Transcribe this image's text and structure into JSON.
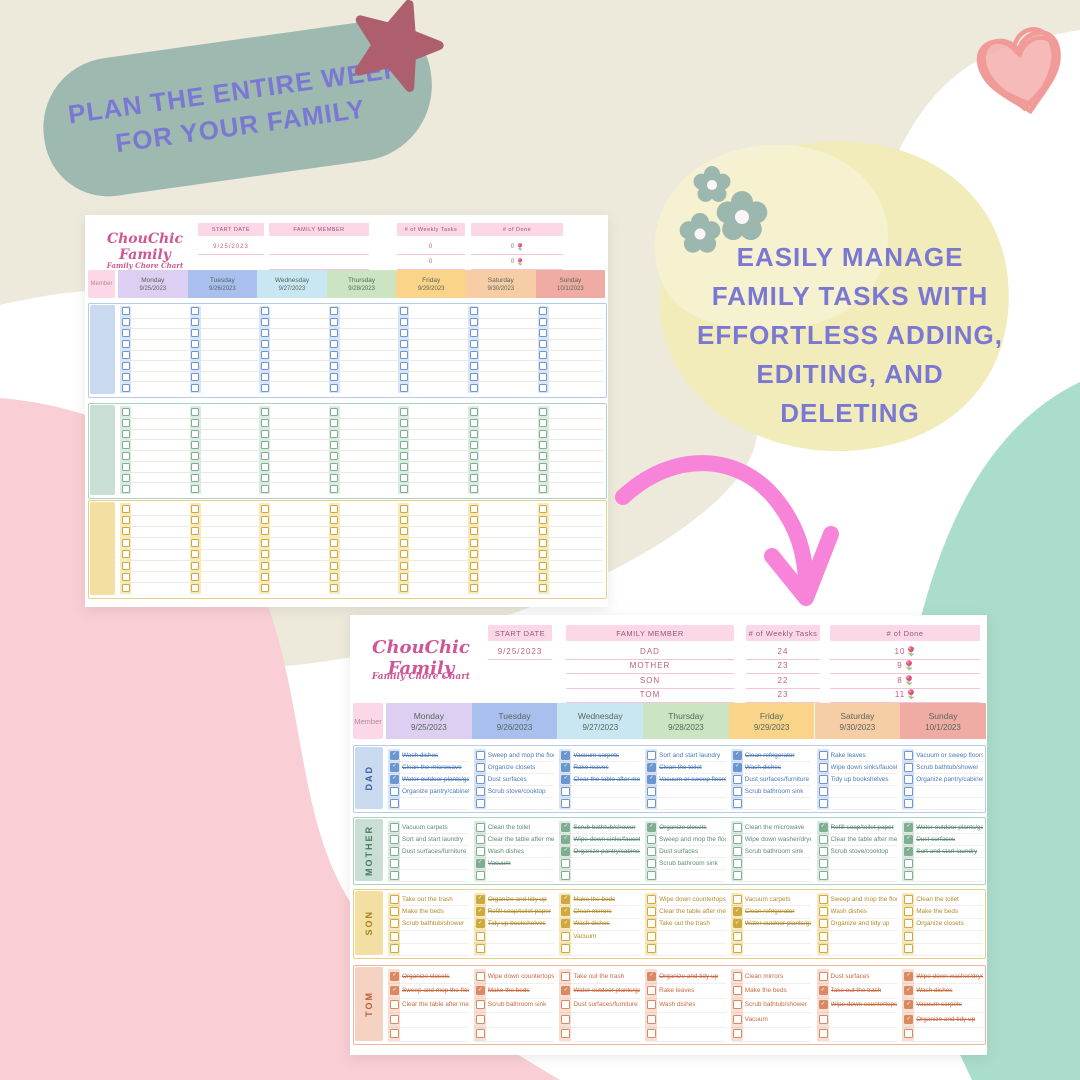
{
  "decor": {
    "plan_badge": {
      "lines": [
        "PLAN THE ENTIRE WEEK",
        "FOR YOUR FAMILY"
      ]
    },
    "manage_badge": {
      "lines": [
        "EASILY MANAGE",
        "FAMILY TASKS WITH",
        "EFFORTLESS ADDING,",
        "EDITING, AND",
        "DELETING"
      ]
    },
    "colors": {
      "badge_bg": "#9db9b0",
      "badge_text": "#7b78d4",
      "star": "#ae5f6e",
      "heart": "#f09b98",
      "arrow": "#f884d9",
      "flower": "#9cb8ae",
      "pink_blob": "#f9ced4",
      "mint_blob": "#aaddcb",
      "yellow_blob": "#f1ecb9",
      "cream": "#edeadc",
      "header_pink": "#fbd7e8",
      "title_pink": "#cf5795"
    }
  },
  "sheet_labels": {
    "title": "ChouChic Family",
    "subtitle": "Family Chore Chart",
    "start_date_label": "START DATE",
    "family_member_label": "FAMILY MEMBER",
    "weekly_tasks_label": "# of Weekly Tasks",
    "done_label": "# of Done",
    "member_label": "Member",
    "days": [
      {
        "name": "Monday",
        "date": "9/25/2023",
        "color": "#dccff1"
      },
      {
        "name": "Tuesday",
        "date": "9/26/2023",
        "color": "#a9bfee"
      },
      {
        "name": "Wednesday",
        "date": "9/27/2023",
        "color": "#c9e7f2"
      },
      {
        "name": "Thursday",
        "date": "9/28/2023",
        "color": "#cbe5c2"
      },
      {
        "name": "Friday",
        "date": "9/29/2023",
        "color": "#fad489"
      },
      {
        "name": "Saturday",
        "date": "9/30/2023",
        "color": "#f7cda5"
      },
      {
        "name": "Sunday",
        "date": "10/1/2023",
        "color": "#f0aca4"
      }
    ]
  },
  "palette": {
    "blue": {
      "cell": "#c9daf0",
      "strip": "#d9e4f6",
      "border": "#b4cbea",
      "text": "#4a7ab8",
      "check": "#6b96cf",
      "deep": "#3a5f93"
    },
    "green": {
      "cell": "#c9dfd4",
      "strip": "#dcebe2",
      "border": "#afd2c0",
      "text": "#5d8a72",
      "check": "#7fae92",
      "deep": "#477a60"
    },
    "yellow": {
      "cell": "#f3dfa2",
      "strip": "#f7e9bc",
      "border": "#e8cf87",
      "text": "#b28c2e",
      "check": "#cfa93e",
      "deep": "#a5821f"
    },
    "salmon": {
      "cell": "#f6d2c2",
      "strip": "#f9dfd3",
      "border": "#efb49c",
      "text": "#c8693f",
      "check": "#d98a63",
      "deep": "#bf5c36"
    }
  },
  "small_sheet": {
    "start_date": "9/25/2023",
    "summary_rows": [
      {
        "member": "",
        "weekly": "0",
        "done": "0"
      },
      {
        "member": "",
        "weekly": "0",
        "done": "0"
      },
      {
        "member": "",
        "weekly": "0",
        "done": "0"
      }
    ],
    "blocks": [
      {
        "color": "blue",
        "rows": 8
      },
      {
        "color": "green",
        "rows": 8
      },
      {
        "color": "yellow",
        "rows": 8
      }
    ]
  },
  "big_sheet": {
    "start_date": "9/25/2023",
    "summary_rows": [
      {
        "member": "DAD",
        "weekly": "24",
        "done": "10"
      },
      {
        "member": "MOTHER",
        "weekly": "23",
        "done": "9"
      },
      {
        "member": "SON",
        "weekly": "22",
        "done": "8"
      },
      {
        "member": "TOM",
        "weekly": "23",
        "done": "11"
      }
    ],
    "members": [
      {
        "name": "DAD",
        "color": "blue",
        "days": [
          [
            [
              "Wash dishes",
              1
            ],
            [
              "Clean the microwave",
              1
            ],
            [
              "Water outdoor plants/garden",
              1
            ],
            [
              "Organize pantry/cabinets",
              0
            ],
            null
          ],
          [
            [
              "Sweep and mop the floor",
              0
            ],
            [
              "Organize closets",
              0
            ],
            [
              "Dust surfaces",
              0
            ],
            [
              "Scrub stove/cooktop",
              0
            ],
            null
          ],
          [
            [
              "Vacuum carpets",
              1
            ],
            [
              "Rake leaves",
              1
            ],
            [
              "Clear the table after meals",
              1
            ],
            null,
            null
          ],
          [
            [
              "Sort and start laundry",
              0
            ],
            [
              "Clean the toilet",
              1
            ],
            [
              "Vacuum or sweep floors",
              1
            ],
            null,
            null
          ],
          [
            [
              "Clean refrigerator",
              1
            ],
            [
              "Wash dishes",
              1
            ],
            [
              "Dust surfaces/furniture",
              0
            ],
            [
              "Scrub bathroom sink",
              0
            ],
            null
          ],
          [
            [
              "Rake leaves",
              0
            ],
            [
              "Wipe down sinks/faucets",
              0
            ],
            [
              "Tidy up bookshelves",
              0
            ],
            null,
            null
          ],
          [
            [
              "Vacuum or sweep floors",
              0
            ],
            [
              "Scrub bathtub/shower",
              0
            ],
            [
              "Organize pantry/cabinets",
              0
            ],
            null,
            null
          ]
        ]
      },
      {
        "name": "MOTHER",
        "color": "green",
        "days": [
          [
            [
              "Vacuum carpets",
              0
            ],
            [
              "Sort and start laundry",
              0
            ],
            [
              "Dust surfaces/furniture",
              0
            ],
            null,
            null
          ],
          [
            [
              "Clean the toilet",
              0
            ],
            [
              "Clear the table after meals",
              0
            ],
            [
              "Wash dishes",
              0
            ],
            [
              "Vacuum",
              1
            ],
            null
          ],
          [
            [
              "Scrub bathtub/shower",
              1
            ],
            [
              "Wipe down sinks/faucets",
              1
            ],
            [
              "Organize pantry/cabinets",
              1
            ],
            null,
            null
          ],
          [
            [
              "Organize closets",
              1
            ],
            [
              "Sweep and mop the floor",
              0
            ],
            [
              "Dust surfaces",
              0
            ],
            [
              "Scrub bathroom sink",
              0
            ],
            null
          ],
          [
            [
              "Clean the microwave",
              0
            ],
            [
              "Wipe down washer/dryer",
              0
            ],
            [
              "Scrub bathroom sink",
              0
            ],
            null,
            null
          ],
          [
            [
              "Refill soap/toilet paper",
              1
            ],
            [
              "Clear the table after meals",
              0
            ],
            [
              "Scrub stove/cooktop",
              0
            ],
            null,
            null
          ],
          [
            [
              "Water outdoor plants/garden",
              1
            ],
            [
              "Dust surfaces",
              1
            ],
            [
              "Sort and start laundry",
              1
            ],
            null,
            null
          ]
        ]
      },
      {
        "name": "SON",
        "color": "yellow",
        "days": [
          [
            [
              "Take out the trash",
              0
            ],
            [
              "Make the beds",
              0
            ],
            [
              "Scrub bathtub/shower",
              0
            ],
            null,
            null
          ],
          [
            [
              "Organize and tidy up",
              1
            ],
            [
              "Refill soap/toilet paper",
              1
            ],
            [
              "Tidy up bookshelves",
              1
            ],
            null,
            null
          ],
          [
            [
              "Make the beds",
              1
            ],
            [
              "Clean mirrors",
              1
            ],
            [
              "Wash dishes",
              1
            ],
            [
              "Vacuum",
              0
            ],
            null
          ],
          [
            [
              "Wipe down countertops",
              0
            ],
            [
              "Clear the table after meals",
              0
            ],
            [
              "Take out the trash",
              0
            ],
            null,
            null
          ],
          [
            [
              "Vacuum carpets",
              0
            ],
            [
              "Clean refrigerator",
              1
            ],
            [
              "Water outdoor plants/garden",
              1
            ],
            null,
            null
          ],
          [
            [
              "Sweep and mop the floor",
              0
            ],
            [
              "Wash dishes",
              0
            ],
            [
              "Organize and tidy up",
              0
            ],
            null,
            null
          ],
          [
            [
              "Clean the toilet",
              0
            ],
            [
              "Make the beds",
              0
            ],
            [
              "Organize closets",
              0
            ],
            null,
            null
          ]
        ]
      },
      {
        "name": "TOM",
        "color": "salmon",
        "days": [
          [
            [
              "Organize closets",
              1
            ],
            [
              "Sweep and mop the floor",
              1
            ],
            [
              "Clear the table after meals",
              0
            ],
            null,
            null
          ],
          [
            [
              "Wipe down countertops",
              0
            ],
            [
              "Make the beds",
              1
            ],
            [
              "Scrub bathroom sink",
              0
            ],
            null,
            null
          ],
          [
            [
              "Take out the trash",
              0
            ],
            [
              "Water outdoor plants/garden",
              1
            ],
            [
              "Dust surfaces/furniture",
              0
            ],
            null,
            null
          ],
          [
            [
              "Organize and tidy up",
              1
            ],
            [
              "Rake leaves",
              0
            ],
            [
              "Wash dishes",
              0
            ],
            null,
            null
          ],
          [
            [
              "Clean mirrors",
              0
            ],
            [
              "Make the beds",
              0
            ],
            [
              "Scrub bathtub/shower",
              0
            ],
            [
              "Vacuum",
              0
            ],
            null
          ],
          [
            [
              "Dust surfaces",
              0
            ],
            [
              "Take out the trash",
              1
            ],
            [
              "Wipe down countertops",
              1
            ],
            null,
            null
          ],
          [
            [
              "Wipe down washer/dryer",
              1
            ],
            [
              "Wash dishes",
              1
            ],
            [
              "Vacuum carpets",
              1
            ],
            [
              "Organize and tidy up",
              1
            ],
            null
          ]
        ]
      }
    ]
  }
}
